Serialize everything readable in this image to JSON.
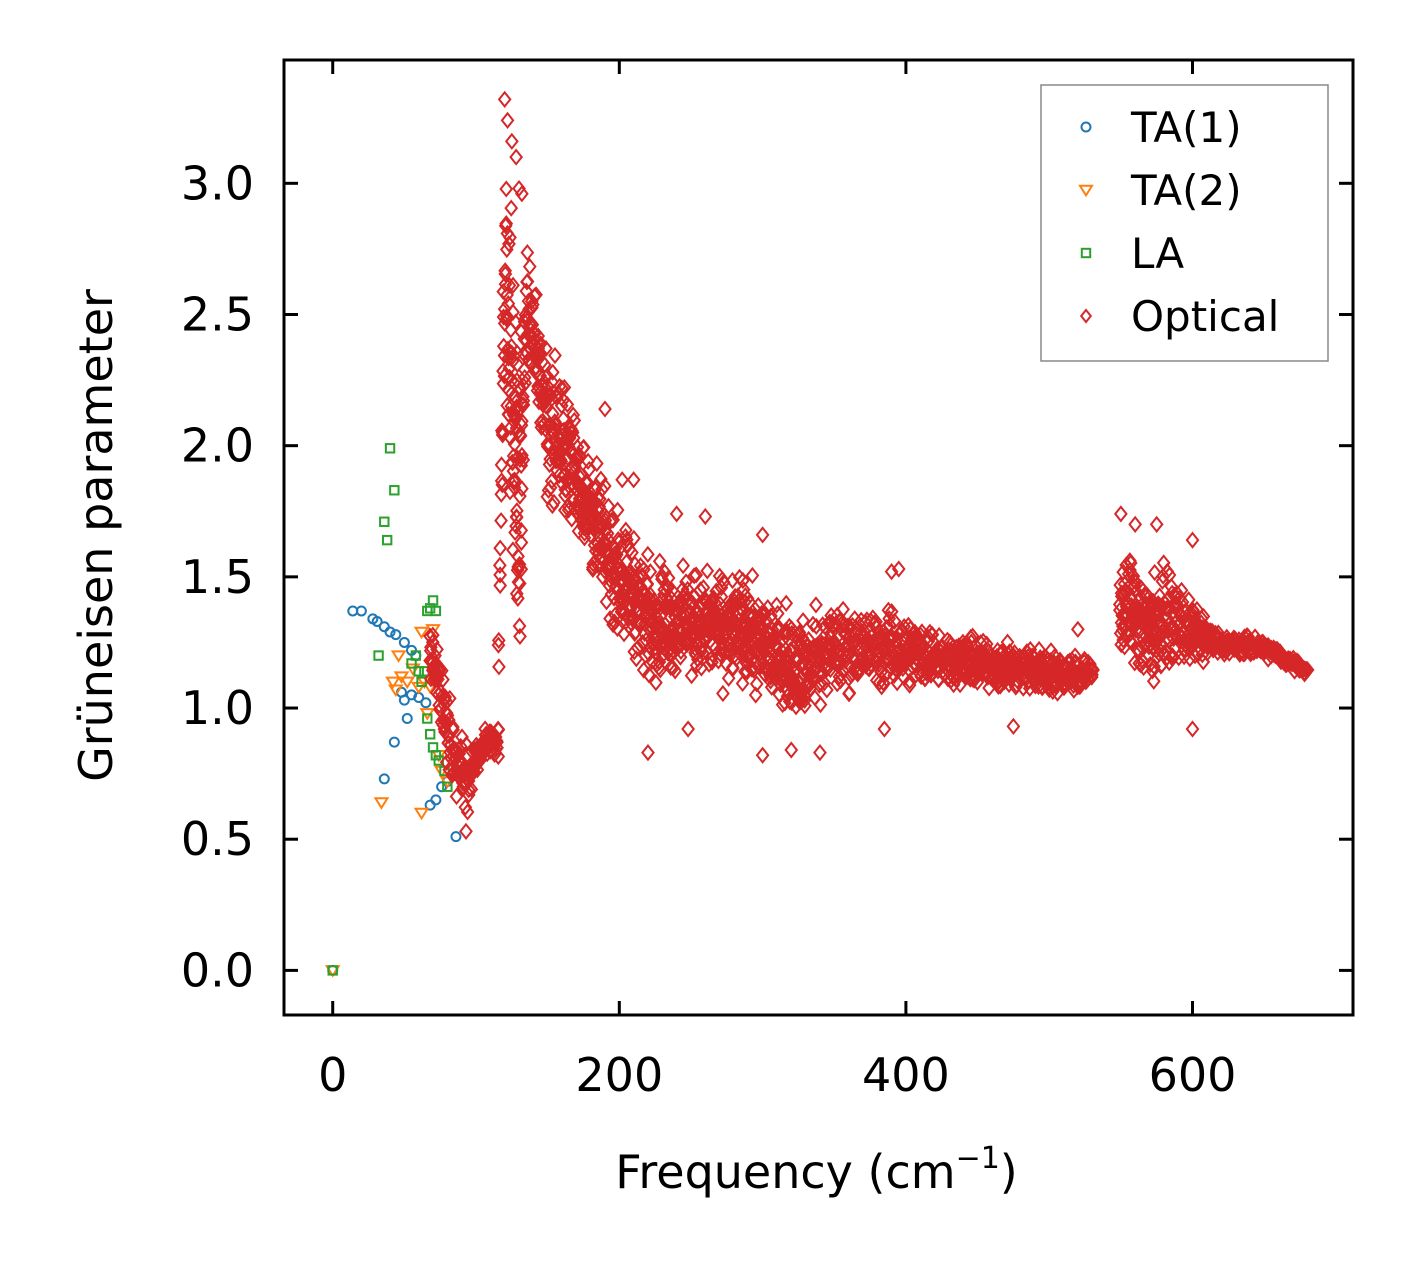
{
  "chart_data": {
    "type": "scatter",
    "xlabel": "Frequency (cm",
    "xlabel_sup": "−1",
    "xlabel_close": ")",
    "ylabel": "Grüneisen parameter",
    "xlim": [
      -34,
      712
    ],
    "ylim": [
      -0.17,
      3.47
    ],
    "xticks": [
      0,
      200,
      400,
      600
    ],
    "xtick_labels": [
      "0",
      "200",
      "400",
      "600"
    ],
    "yticks": [
      0.0,
      0.5,
      1.0,
      1.5,
      2.0,
      2.5,
      3.0
    ],
    "ytick_labels": [
      "0.0",
      "0.5",
      "1.0",
      "1.5",
      "2.0",
      "2.5",
      "3.0"
    ],
    "legend_position": "top-right",
    "series": [
      {
        "name": "TA(1)",
        "marker": "circle",
        "color": "#1f77b4",
        "points": [
          [
            0,
            0
          ],
          [
            14,
            1.37
          ],
          [
            20,
            1.37
          ],
          [
            28,
            1.34
          ],
          [
            31,
            1.33
          ],
          [
            36,
            1.31
          ],
          [
            40,
            1.29
          ],
          [
            44,
            1.28
          ],
          [
            50,
            1.25
          ],
          [
            55,
            1.22
          ],
          [
            58,
            1.2
          ],
          [
            48,
            1.06
          ],
          [
            50,
            1.03
          ],
          [
            55,
            1.05
          ],
          [
            60,
            1.04
          ],
          [
            65,
            1.02
          ],
          [
            52,
            0.96
          ],
          [
            43,
            0.87
          ],
          [
            36,
            0.73
          ],
          [
            68,
            0.63
          ],
          [
            72,
            0.65
          ],
          [
            76,
            0.7
          ],
          [
            80,
            0.72
          ],
          [
            86,
            0.51
          ]
        ]
      },
      {
        "name": "TA(2)",
        "marker": "triangle-down",
        "color": "#ff7f0e",
        "points": [
          [
            0,
            0
          ],
          [
            34,
            0.64
          ],
          [
            42,
            1.1
          ],
          [
            44,
            1.07
          ],
          [
            46,
            1.2
          ],
          [
            48,
            1.12
          ],
          [
            52,
            1.1
          ],
          [
            56,
            1.15
          ],
          [
            60,
            1.08
          ],
          [
            62,
            1.29
          ],
          [
            64,
            1.1
          ],
          [
            66,
            0.98
          ],
          [
            68,
            1.08
          ],
          [
            70,
            1.3
          ],
          [
            74,
            0.82
          ],
          [
            76,
            0.76
          ],
          [
            80,
            0.72
          ],
          [
            62,
            0.6
          ]
        ]
      },
      {
        "name": "LA",
        "marker": "square",
        "color": "#2ca02c",
        "points": [
          [
            0,
            0
          ],
          [
            32,
            1.2
          ],
          [
            36,
            1.71
          ],
          [
            38,
            1.64
          ],
          [
            40,
            1.99
          ],
          [
            43,
            1.83
          ],
          [
            55,
            1.17
          ],
          [
            58,
            1.2
          ],
          [
            60,
            1.14
          ],
          [
            62,
            1.1
          ],
          [
            64,
            1.14
          ],
          [
            66,
            1.37
          ],
          [
            68,
            1.38
          ],
          [
            70,
            1.41
          ],
          [
            72,
            1.37
          ],
          [
            66,
            0.96
          ],
          [
            68,
            0.9
          ],
          [
            70,
            0.85
          ],
          [
            72,
            0.82
          ],
          [
            74,
            0.8
          ],
          [
            78,
            0.76
          ],
          [
            80,
            0.7
          ]
        ]
      },
      {
        "name": "Optical",
        "marker": "diamond",
        "color": "#d62728",
        "profile": [
          [
            68,
            1.22,
            0.16
          ],
          [
            85,
            0.82,
            0.2
          ],
          [
            95,
            0.74,
            0.16
          ],
          [
            105,
            0.86,
            0.06
          ],
          [
            115,
            0.86,
            0.12
          ],
          [
            120,
            2.6,
            0.55
          ],
          [
            125,
            2.3,
            0.75
          ],
          [
            130,
            1.7,
            0.85
          ],
          [
            135,
            2.55,
            0.25
          ],
          [
            140,
            2.4,
            0.3
          ],
          [
            150,
            2.1,
            0.4
          ],
          [
            170,
            1.9,
            0.3
          ],
          [
            190,
            1.6,
            0.3
          ],
          [
            220,
            1.35,
            0.3
          ],
          [
            250,
            1.32,
            0.25
          ],
          [
            280,
            1.3,
            0.28
          ],
          [
            300,
            1.25,
            0.25
          ],
          [
            330,
            1.15,
            0.25
          ],
          [
            350,
            1.23,
            0.22
          ],
          [
            400,
            1.22,
            0.18
          ],
          [
            440,
            1.18,
            0.12
          ],
          [
            480,
            1.15,
            0.12
          ],
          [
            520,
            1.13,
            0.1
          ],
          [
            530,
            1.14,
            0.05
          ],
          [
            552,
            1.4,
            0.3
          ],
          [
            570,
            1.3,
            0.3
          ],
          [
            585,
            1.35,
            0.22
          ],
          [
            600,
            1.28,
            0.15
          ],
          [
            620,
            1.24,
            0.06
          ],
          [
            650,
            1.23,
            0.05
          ],
          [
            680,
            1.14,
            0.02
          ]
        ],
        "outliers": [
          [
            120,
            3.32
          ],
          [
            122,
            3.24
          ],
          [
            125,
            3.16
          ],
          [
            128,
            3.1
          ],
          [
            130,
            2.98
          ],
          [
            132,
            2.96
          ],
          [
            190,
            2.14
          ],
          [
            202,
            1.87
          ],
          [
            210,
            1.87
          ],
          [
            240,
            1.74
          ],
          [
            260,
            1.73
          ],
          [
            300,
            1.66
          ],
          [
            390,
            1.52
          ],
          [
            395,
            1.53
          ],
          [
            600,
            1.64
          ],
          [
            575,
            1.7
          ],
          [
            560,
            1.7
          ],
          [
            550,
            1.74
          ],
          [
            520,
            1.3
          ],
          [
            248,
            0.92
          ],
          [
            300,
            0.82
          ],
          [
            320,
            0.84
          ],
          [
            340,
            0.83
          ],
          [
            385,
            0.92
          ],
          [
            475,
            0.93
          ],
          [
            600,
            0.92
          ],
          [
            220,
            0.83
          ],
          [
            93,
            0.53
          ]
        ]
      }
    ]
  }
}
